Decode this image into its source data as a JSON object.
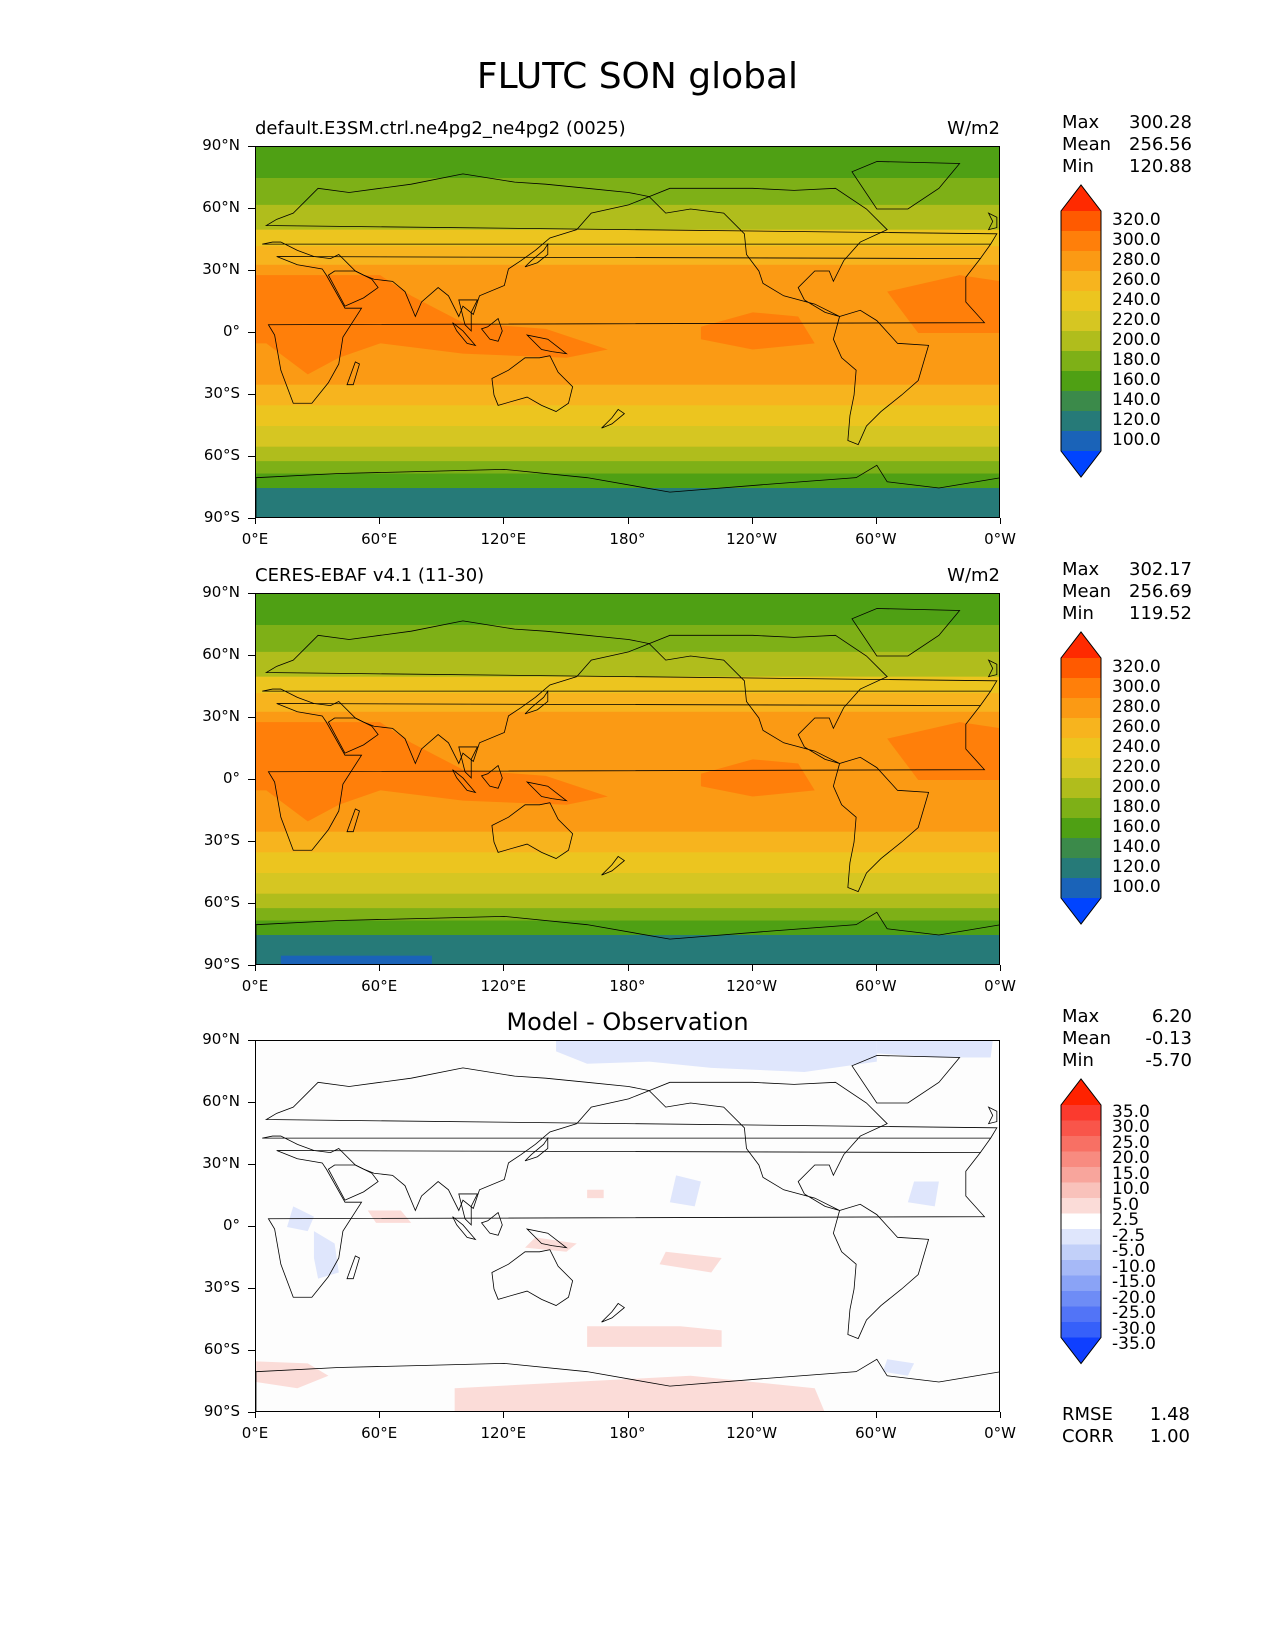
{
  "figure": {
    "title": "FLUTC SON global"
  },
  "axes": {
    "y_ticks": [
      "90°N",
      "60°N",
      "30°N",
      "0°",
      "30°S",
      "60°S",
      "90°S"
    ],
    "x_ticks": [
      "0°E",
      "60°E",
      "120°E",
      "180°",
      "120°W",
      "60°W",
      "0°W"
    ]
  },
  "panels": [
    {
      "title": "default.E3SM.ctrl.ne4pg2_ne4pg2 (0025)",
      "units": "W/m2",
      "stats": {
        "max_label": "Max",
        "max": "300.28",
        "mean_label": "Mean",
        "mean": "256.56",
        "min_label": "Min",
        "min": "120.88"
      },
      "colorbar": {
        "labels": [
          "320.0",
          "300.0",
          "280.0",
          "260.0",
          "240.0",
          "220.0",
          "200.0",
          "180.0",
          "160.0",
          "140.0",
          "120.0",
          "100.0"
        ],
        "colors": [
          "#ff2a00",
          "#ff5a00",
          "#ff7f0a",
          "#fb9a14",
          "#f7b41e",
          "#ecc51f",
          "#d6c622",
          "#b0bd1c",
          "#7eb017",
          "#4fa014",
          "#3b8a4a",
          "#267a78",
          "#1a63b8",
          "#0044ff"
        ]
      }
    },
    {
      "title": "CERES-EBAF v4.1 (11-30)",
      "units": "W/m2",
      "stats": {
        "max_label": "Max",
        "max": "302.17",
        "mean_label": "Mean",
        "mean": "256.69",
        "min_label": "Min",
        "min": "119.52"
      },
      "colorbar": {
        "labels": [
          "320.0",
          "300.0",
          "280.0",
          "260.0",
          "240.0",
          "220.0",
          "200.0",
          "180.0",
          "160.0",
          "140.0",
          "120.0",
          "100.0"
        ],
        "colors": [
          "#ff2a00",
          "#ff5a00",
          "#ff7f0a",
          "#fb9a14",
          "#f7b41e",
          "#ecc51f",
          "#d6c622",
          "#b0bd1c",
          "#7eb017",
          "#4fa014",
          "#3b8a4a",
          "#267a78",
          "#1a63b8",
          "#0044ff"
        ]
      }
    },
    {
      "title": "Model - Observation",
      "units": "",
      "stats": {
        "max_label": "Max",
        "max": "6.20",
        "mean_label": "Mean",
        "mean": "-0.13",
        "min_label": "Min",
        "min": "-5.70"
      },
      "colorbar": {
        "labels": [
          "35.0",
          "30.0",
          "25.0",
          "20.0",
          "15.0",
          "10.0",
          "5.0",
          "2.5",
          "-2.5",
          "-5.0",
          "-10.0",
          "-15.0",
          "-20.0",
          "-25.0",
          "-30.0",
          "-35.0"
        ],
        "colors": [
          "#ff2200",
          "#fb3a2e",
          "#f9554a",
          "#f87064",
          "#f88b80",
          "#f8a59c",
          "#f9c2bb",
          "#fbdcd8",
          "#ffffff",
          "#dfe6fc",
          "#c2d0f9",
          "#a6b9f7",
          "#8aa3f6",
          "#6e8cf6",
          "#5274f7",
          "#3660fa",
          "#0f3fff"
        ]
      },
      "metrics": {
        "rmse_label": "RMSE",
        "rmse": "1.48",
        "corr_label": "CORR",
        "corr": "1.00"
      }
    }
  ]
}
